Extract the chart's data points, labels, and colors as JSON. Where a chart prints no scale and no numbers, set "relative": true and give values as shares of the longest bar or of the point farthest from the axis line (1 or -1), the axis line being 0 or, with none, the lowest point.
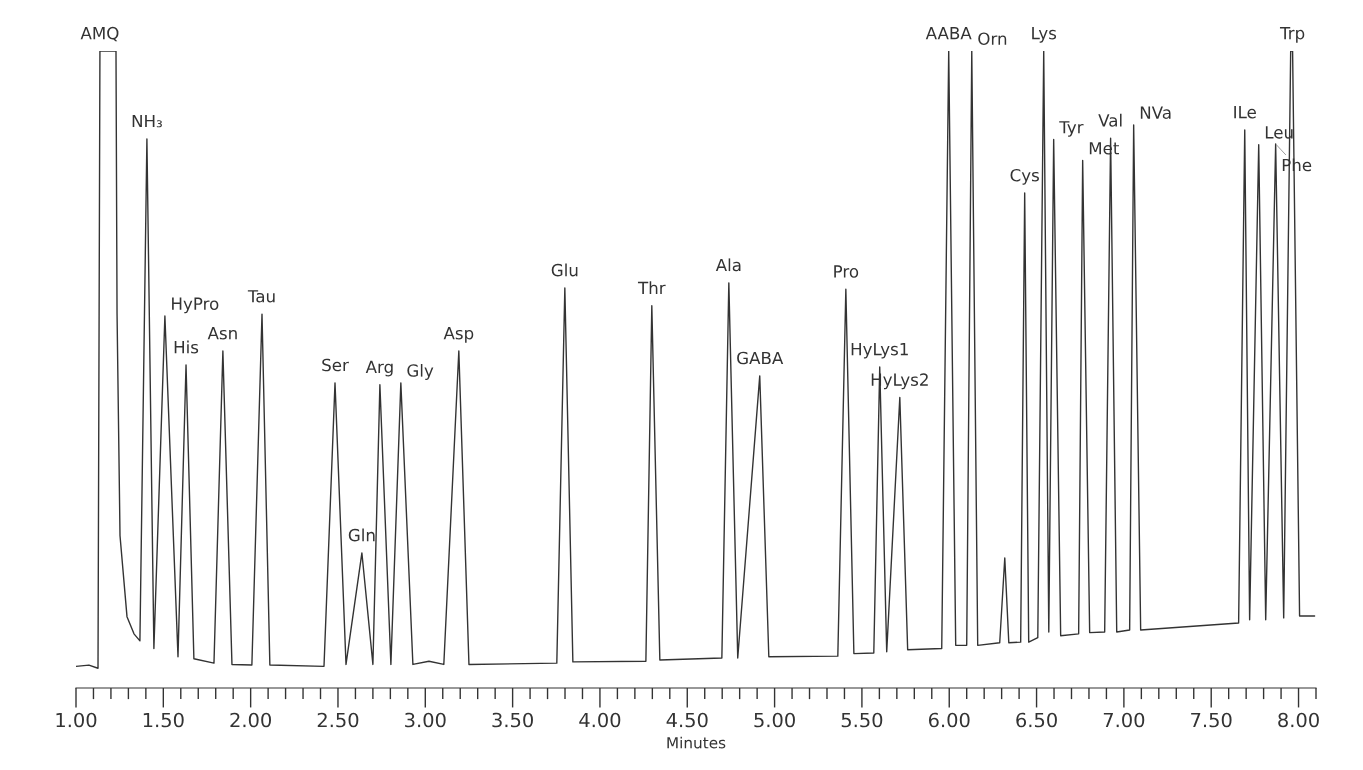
{
  "chart_data": {
    "type": "line",
    "relative": true,
    "xlabel": "Minutes",
    "grid": false,
    "legend": false,
    "tick_labels": "x",
    "marker": "none",
    "line_style": "solid",
    "xlim": [
      1.0,
      8.1
    ],
    "xticks": [
      {
        "value": 1.0,
        "label": "1.00"
      },
      {
        "value": 1.1,
        "label": null
      },
      {
        "value": 1.2,
        "label": null
      },
      {
        "value": 1.3,
        "label": null
      },
      {
        "value": 1.4,
        "label": null
      },
      {
        "value": 1.5,
        "label": "1.50"
      },
      {
        "value": 1.6,
        "label": null
      },
      {
        "value": 1.7,
        "label": null
      },
      {
        "value": 1.8,
        "label": null
      },
      {
        "value": 1.9,
        "label": null
      },
      {
        "value": 2.0,
        "label": "2.00"
      },
      {
        "value": 2.1,
        "label": null
      },
      {
        "value": 2.2,
        "label": null
      },
      {
        "value": 2.3,
        "label": null
      },
      {
        "value": 2.4,
        "label": null
      },
      {
        "value": 2.5,
        "label": "2.50"
      },
      {
        "value": 2.6,
        "label": null
      },
      {
        "value": 2.7,
        "label": null
      },
      {
        "value": 2.8,
        "label": null
      },
      {
        "value": 2.9,
        "label": null
      },
      {
        "value": 3.0,
        "label": "3.00"
      },
      {
        "value": 3.1,
        "label": null
      },
      {
        "value": 3.2,
        "label": null
      },
      {
        "value": 3.3,
        "label": null
      },
      {
        "value": 3.4,
        "label": null
      },
      {
        "value": 3.5,
        "label": "3.50"
      },
      {
        "value": 3.6,
        "label": null
      },
      {
        "value": 3.7,
        "label": null
      },
      {
        "value": 3.8,
        "label": null
      },
      {
        "value": 3.9,
        "label": null
      },
      {
        "value": 4.0,
        "label": "4.00"
      },
      {
        "value": 4.1,
        "label": null
      },
      {
        "value": 4.2,
        "label": null
      },
      {
        "value": 4.3,
        "label": null
      },
      {
        "value": 4.4,
        "label": null
      },
      {
        "value": 4.5,
        "label": "4.50"
      },
      {
        "value": 4.6,
        "label": null
      },
      {
        "value": 4.7,
        "label": null
      },
      {
        "value": 4.8,
        "label": null
      },
      {
        "value": 4.9,
        "label": null
      },
      {
        "value": 5.0,
        "label": "5.00"
      },
      {
        "value": 5.1,
        "label": null
      },
      {
        "value": 5.2,
        "label": null
      },
      {
        "value": 5.3,
        "label": null
      },
      {
        "value": 5.4,
        "label": null
      },
      {
        "value": 5.5,
        "label": "5.50"
      },
      {
        "value": 5.6,
        "label": null
      },
      {
        "value": 5.7,
        "label": null
      },
      {
        "value": 5.8,
        "label": null
      },
      {
        "value": 5.9,
        "label": null
      },
      {
        "value": 6.0,
        "label": "6.00"
      },
      {
        "value": 6.1,
        "label": null
      },
      {
        "value": 6.2,
        "label": null
      },
      {
        "value": 6.3,
        "label": null
      },
      {
        "value": 6.4,
        "label": null
      },
      {
        "value": 6.5,
        "label": "6.50"
      },
      {
        "value": 6.6,
        "label": null
      },
      {
        "value": 6.7,
        "label": null
      },
      {
        "value": 6.8,
        "label": null
      },
      {
        "value": 6.9,
        "label": null
      },
      {
        "value": 7.0,
        "label": "7.00"
      },
      {
        "value": 7.1,
        "label": null
      },
      {
        "value": 7.2,
        "label": null
      },
      {
        "value": 7.3,
        "label": null
      },
      {
        "value": 7.4,
        "label": null
      },
      {
        "value": 7.5,
        "label": "7.50"
      },
      {
        "value": 7.6,
        "label": null
      },
      {
        "value": 7.7,
        "label": null
      },
      {
        "value": 7.8,
        "label": null
      },
      {
        "value": 7.9,
        "label": null
      },
      {
        "value": 8.0,
        "label": "8.00"
      },
      {
        "value": 8.1,
        "label": null
      }
    ],
    "series": [
      {
        "color": "#333333",
        "x": [
          1.0,
          1.074,
          1.126,
          1.137,
          1.229,
          1.235,
          1.252,
          1.292,
          1.332,
          1.366,
          1.406,
          1.446,
          1.509,
          1.584,
          1.63,
          1.675,
          1.79,
          1.841,
          1.893,
          2.007,
          2.065,
          2.11,
          2.42,
          2.483,
          2.546,
          2.637,
          2.7,
          2.74,
          2.803,
          2.86,
          2.929,
          3.021,
          3.106,
          3.192,
          3.25,
          3.753,
          3.799,
          3.845,
          4.263,
          4.297,
          4.343,
          4.698,
          4.738,
          4.789,
          4.915,
          4.967,
          5.362,
          5.408,
          5.454,
          5.568,
          5.602,
          5.642,
          5.717,
          5.762,
          5.957,
          5.997,
          6.037,
          6.1,
          6.129,
          6.163,
          6.289,
          6.318,
          6.341,
          6.409,
          6.432,
          6.455,
          6.507,
          6.541,
          6.57,
          6.598,
          6.638,
          6.741,
          6.764,
          6.804,
          6.89,
          6.924,
          6.959,
          7.033,
          7.056,
          7.096,
          7.657,
          7.692,
          7.72,
          7.772,
          7.812,
          7.869,
          7.915,
          7.955,
          7.966,
          8.006,
          8.092
        ],
        "values": [
          0.034,
          0.036,
          0.031,
          1,
          1,
          0.588,
          0.239,
          0.112,
          0.085,
          0.074,
          0.862,
          0.062,
          0.584,
          0.049,
          0.507,
          0.046,
          0.039,
          0.529,
          0.037,
          0.036,
          0.587,
          0.036,
          0.034,
          0.479,
          0.037,
          0.212,
          0.037,
          0.476,
          0.037,
          0.479,
          0.037,
          0.042,
          0.037,
          0.529,
          0.037,
          0.039,
          0.628,
          0.041,
          0.042,
          0.6,
          0.044,
          0.047,
          0.636,
          0.047,
          0.49,
          0.049,
          0.05,
          0.626,
          0.054,
          0.055,
          0.504,
          0.057,
          0.456,
          0.06,
          0.062,
          1,
          0.067,
          0.067,
          1,
          0.067,
          0.071,
          0.204,
          0.071,
          0.072,
          0.777,
          0.072,
          0.079,
          1,
          0.088,
          0.861,
          0.082,
          0.085,
          0.828,
          0.087,
          0.088,
          0.863,
          0.088,
          0.091,
          0.884,
          0.091,
          0.102,
          0.876,
          0.107,
          0.853,
          0.107,
          0.854,
          0.11,
          1,
          1,
          0.113,
          0.113
        ]
      }
    ],
    "annotations": [
      {
        "text": "AMQ",
        "x": 1.137,
        "y": 1
      },
      {
        "text": "NH₃",
        "x": 1.406,
        "y": 0.862
      },
      {
        "text": "HyPro",
        "x": 1.509,
        "y": 0.584
      },
      {
        "text": "His",
        "x": 1.63,
        "y": 0.507
      },
      {
        "text": "Asn",
        "x": 1.841,
        "y": 0.529
      },
      {
        "text": "Tau",
        "x": 2.065,
        "y": 0.587
      },
      {
        "text": "Ser",
        "x": 2.483,
        "y": 0.479
      },
      {
        "text": "Gln",
        "x": 2.637,
        "y": 0.212
      },
      {
        "text": "Arg",
        "x": 2.74,
        "y": 0.476
      },
      {
        "text": "Gly",
        "x": 2.86,
        "y": 0.479
      },
      {
        "text": "Asp",
        "x": 3.192,
        "y": 0.529
      },
      {
        "text": "Glu",
        "x": 3.799,
        "y": 0.628
      },
      {
        "text": "Thr",
        "x": 4.297,
        "y": 0.6
      },
      {
        "text": "Ala",
        "x": 4.738,
        "y": 0.636
      },
      {
        "text": "GABA",
        "x": 4.915,
        "y": 0.49
      },
      {
        "text": "Pro",
        "x": 5.408,
        "y": 0.626
      },
      {
        "text": "HyLys1",
        "x": 5.602,
        "y": 0.504
      },
      {
        "text": "HyLys2",
        "x": 5.717,
        "y": 0.456
      },
      {
        "text": "AABA",
        "x": 5.997,
        "y": 1
      },
      {
        "text": "Orn",
        "x": 6.129,
        "y": 1
      },
      {
        "text": "Lys",
        "x": 6.541,
        "y": 1
      },
      {
        "text": "Cys",
        "x": 6.432,
        "y": 0.777
      },
      {
        "text": "Tyr",
        "x": 6.598,
        "y": 0.861
      },
      {
        "text": "Met",
        "x": 6.764,
        "y": 0.828
      },
      {
        "text": "Val",
        "x": 6.924,
        "y": 0.863
      },
      {
        "text": "NVa",
        "x": 7.056,
        "y": 0.884
      },
      {
        "text": "ILe",
        "x": 7.692,
        "y": 0.876
      },
      {
        "text": "Leu",
        "x": 7.772,
        "y": 0.853
      },
      {
        "text": "Phe",
        "x": 7.869,
        "y": 0.854
      },
      {
        "text": "Trp",
        "x": 7.966,
        "y": 1
      }
    ]
  }
}
